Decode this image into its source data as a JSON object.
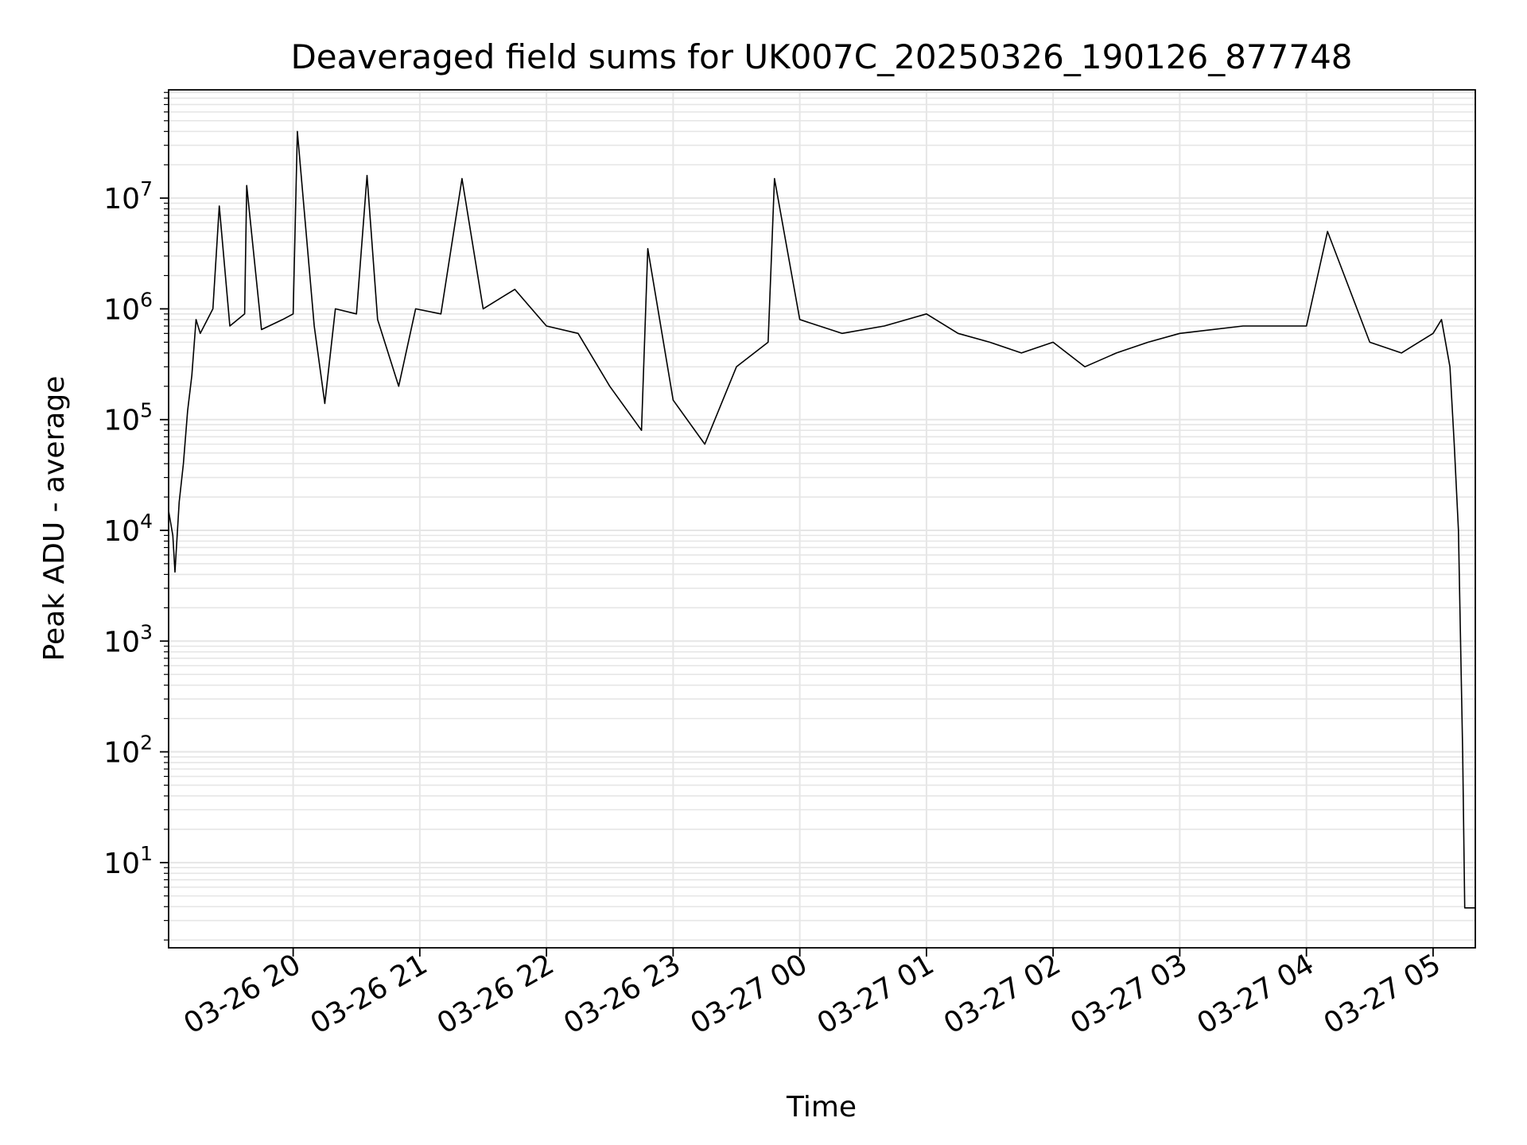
{
  "chart_data": {
    "type": "line",
    "title": "Deaveraged field sums for UK007C_20250326_190126_877748",
    "xlabel": "Time",
    "ylabel": "Peak ADU - average",
    "xscale": "time",
    "yscale": "log",
    "xlim": [
      "2025-03-26 19:01",
      "2025-03-27 05:20"
    ],
    "ylim": [
      1.7,
      95000000
    ],
    "x_ticks": [
      "03-26 20",
      "03-26 21",
      "03-26 22",
      "03-26 23",
      "03-27 00",
      "03-27 01",
      "03-27 02",
      "03-27 03",
      "03-27 04",
      "03-27 05"
    ],
    "y_ticks": [
      {
        "base": "10",
        "exp": "1",
        "value": 10
      },
      {
        "base": "10",
        "exp": "2",
        "value": 100
      },
      {
        "base": "10",
        "exp": "3",
        "value": 1000
      },
      {
        "base": "10",
        "exp": "4",
        "value": 10000
      },
      {
        "base": "10",
        "exp": "5",
        "value": 100000
      },
      {
        "base": "10",
        "exp": "6",
        "value": 1000000
      },
      {
        "base": "10",
        "exp": "7",
        "value": 10000000
      }
    ],
    "grid": true,
    "line_color": "#000000",
    "grid_color": "#e6e6e6",
    "series": [
      {
        "points": [
          [
            "2025-03-26 19:01",
            15000
          ],
          [
            "2025-03-26 19:03",
            9000
          ],
          [
            "2025-03-26 19:04",
            4200
          ],
          [
            "2025-03-26 19:06",
            18000
          ],
          [
            "2025-03-26 19:08",
            40000
          ],
          [
            "2025-03-26 19:10",
            120000
          ],
          [
            "2025-03-26 19:12",
            250000
          ],
          [
            "2025-03-26 19:14",
            800000
          ],
          [
            "2025-03-26 19:16",
            600000
          ],
          [
            "2025-03-26 19:22",
            1000000
          ],
          [
            "2025-03-26 19:25",
            8500000
          ],
          [
            "2025-03-26 19:30",
            700000
          ],
          [
            "2025-03-26 19:37",
            900000
          ],
          [
            "2025-03-26 19:38",
            13000000
          ],
          [
            "2025-03-26 19:45",
            650000
          ],
          [
            "2025-03-26 19:55",
            800000
          ],
          [
            "2025-03-26 20:00",
            900000
          ],
          [
            "2025-03-26 20:02",
            40000000
          ],
          [
            "2025-03-26 20:10",
            700000
          ],
          [
            "2025-03-26 20:15",
            140000
          ],
          [
            "2025-03-26 20:20",
            1000000
          ],
          [
            "2025-03-26 20:30",
            900000
          ],
          [
            "2025-03-26 20:35",
            16000000
          ],
          [
            "2025-03-26 20:40",
            800000
          ],
          [
            "2025-03-26 20:50",
            200000
          ],
          [
            "2025-03-26 20:58",
            1000000
          ],
          [
            "2025-03-26 21:10",
            900000
          ],
          [
            "2025-03-26 21:20",
            15000000
          ],
          [
            "2025-03-26 21:30",
            1000000
          ],
          [
            "2025-03-26 21:45",
            1500000
          ],
          [
            "2025-03-26 22:00",
            700000
          ],
          [
            "2025-03-26 22:15",
            600000
          ],
          [
            "2025-03-26 22:30",
            200000
          ],
          [
            "2025-03-26 22:45",
            80000
          ],
          [
            "2025-03-26 22:48",
            3500000
          ],
          [
            "2025-03-26 23:00",
            150000
          ],
          [
            "2025-03-26 23:15",
            60000
          ],
          [
            "2025-03-26 23:30",
            300000
          ],
          [
            "2025-03-26 23:45",
            500000
          ],
          [
            "2025-03-26 23:48",
            15000000
          ],
          [
            "2025-03-27 00:00",
            800000
          ],
          [
            "2025-03-27 00:20",
            600000
          ],
          [
            "2025-03-27 00:40",
            700000
          ],
          [
            "2025-03-27 01:00",
            900000
          ],
          [
            "2025-03-27 01:15",
            600000
          ],
          [
            "2025-03-27 01:30",
            500000
          ],
          [
            "2025-03-27 01:45",
            400000
          ],
          [
            "2025-03-27 02:00",
            500000
          ],
          [
            "2025-03-27 02:15",
            300000
          ],
          [
            "2025-03-27 02:30",
            400000
          ],
          [
            "2025-03-27 02:45",
            500000
          ],
          [
            "2025-03-27 03:00",
            600000
          ],
          [
            "2025-03-27 03:30",
            700000
          ],
          [
            "2025-03-27 04:00",
            700000
          ],
          [
            "2025-03-27 04:10",
            5000000
          ],
          [
            "2025-03-27 04:30",
            500000
          ],
          [
            "2025-03-27 04:45",
            400000
          ],
          [
            "2025-03-27 05:00",
            600000
          ],
          [
            "2025-03-27 05:04",
            800000
          ],
          [
            "2025-03-27 05:08",
            300000
          ],
          [
            "2025-03-27 05:10",
            60000
          ],
          [
            "2025-03-27 05:12",
            10000
          ],
          [
            "2025-03-27 05:14",
            100
          ],
          [
            "2025-03-27 05:15",
            3.9
          ],
          [
            "2025-03-27 05:20",
            3.9
          ]
        ]
      }
    ]
  }
}
